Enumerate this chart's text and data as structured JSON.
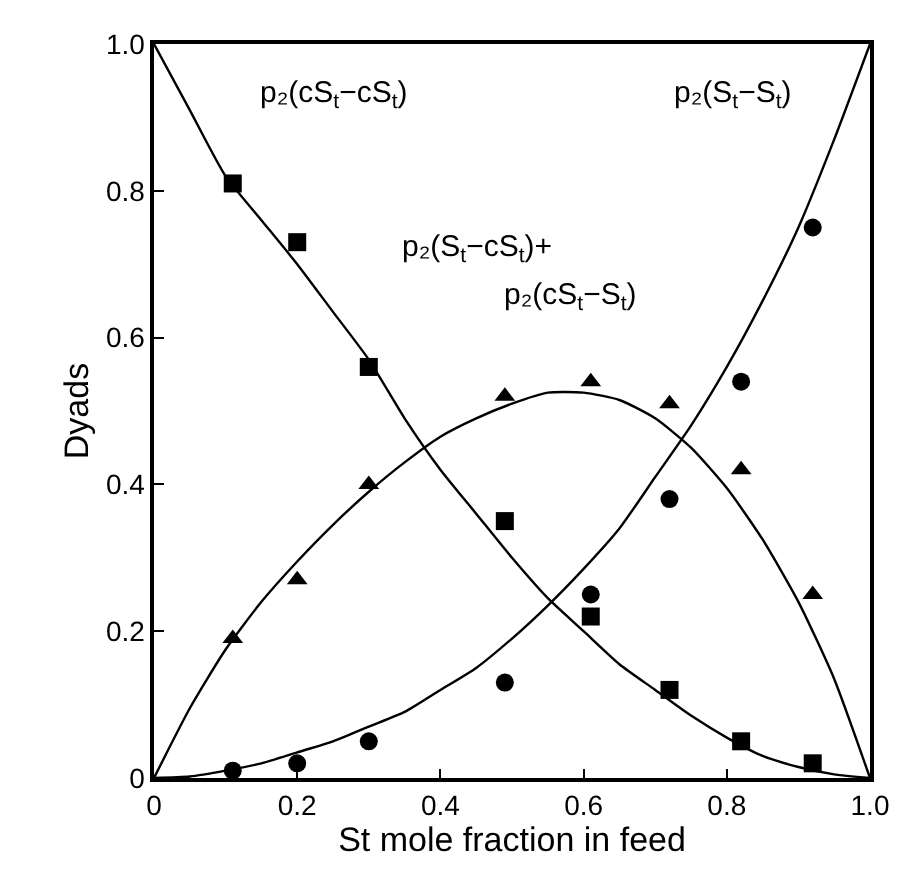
{
  "chart_data": {
    "type": "scatter",
    "xlabel": "St mole fraction in feed",
    "ylabel": "Dyads",
    "xlim": [
      0,
      1
    ],
    "ylim": [
      0,
      1
    ],
    "xticks": [
      0,
      0.2,
      0.4,
      0.6,
      0.8,
      {
        "value": 1,
        "label": "1.0"
      }
    ],
    "yticks": [
      0,
      0.2,
      0.4,
      0.6,
      0.8,
      {
        "value": 1,
        "label": "1.0"
      }
    ],
    "x": [
      0.11,
      0.2,
      0.3,
      0.49,
      0.61,
      0.72,
      0.82,
      0.92
    ],
    "series": [
      {
        "marker": "square",
        "color": "#000000",
        "values": [
          0.81,
          0.73,
          0.56,
          0.35,
          0.22,
          0.12,
          0.05,
          0.02
        ]
      },
      {
        "marker": "circle",
        "color": "#000000",
        "values": [
          0.01,
          0.02,
          0.05,
          0.13,
          0.25,
          0.38,
          0.54,
          0.75
        ]
      },
      {
        "marker": "triangle",
        "color": "#000000",
        "values": [
          0.19,
          0.27,
          0.4,
          0.52,
          0.54,
          0.51,
          0.42,
          0.25
        ]
      },
      {
        "type": "line",
        "marker": "none",
        "line_style": "solid",
        "color": "#000000",
        "x": [
          0,
          0.05,
          0.1,
          0.15,
          0.2,
          0.25,
          0.3,
          0.35,
          0.4,
          0.45,
          0.5,
          0.55,
          0.6,
          0.65,
          0.7,
          0.75,
          0.8,
          0.85,
          0.9,
          0.95,
          1
        ],
        "values": [
          1,
          0.91,
          0.82,
          0.76,
          0.7,
          0.635,
          0.57,
          0.49,
          0.42,
          0.36,
          0.3,
          0.245,
          0.2,
          0.155,
          0.12,
          0.085,
          0.055,
          0.03,
          0.015,
          0.005,
          0
        ]
      },
      {
        "type": "line",
        "marker": "none",
        "line_style": "solid",
        "color": "#000000",
        "x": [
          0,
          0.05,
          0.1,
          0.15,
          0.2,
          0.25,
          0.3,
          0.35,
          0.4,
          0.45,
          0.5,
          0.55,
          0.6,
          0.65,
          0.7,
          0.75,
          0.8,
          0.85,
          0.9,
          0.95,
          1
        ],
        "values": [
          0,
          0.002,
          0.01,
          0.02,
          0.035,
          0.05,
          0.07,
          0.09,
          0.12,
          0.15,
          0.19,
          0.235,
          0.285,
          0.34,
          0.41,
          0.48,
          0.56,
          0.65,
          0.75,
          0.87,
          1
        ]
      },
      {
        "type": "line",
        "marker": "none",
        "line_style": "solid",
        "color": "#000000",
        "x": [
          0,
          0.05,
          0.1,
          0.15,
          0.2,
          0.25,
          0.3,
          0.35,
          0.4,
          0.45,
          0.5,
          0.55,
          0.6,
          0.65,
          0.7,
          0.75,
          0.8,
          0.85,
          0.9,
          0.95,
          1
        ],
        "values": [
          0,
          0.095,
          0.175,
          0.24,
          0.295,
          0.345,
          0.39,
          0.43,
          0.465,
          0.49,
          0.51,
          0.525,
          0.525,
          0.515,
          0.49,
          0.45,
          0.395,
          0.325,
          0.24,
          0.135,
          0
        ]
      }
    ],
    "annotations": [
      "p₂(cS$_{t}$−cS$_{t}$)",
      "p₂(S$_{t}$−S$_{t}$)",
      "p₂(S$_{t}$−cS$_{t}$)+",
      "p₂(cS$_{t}$−S$_{t}$)"
    ]
  }
}
